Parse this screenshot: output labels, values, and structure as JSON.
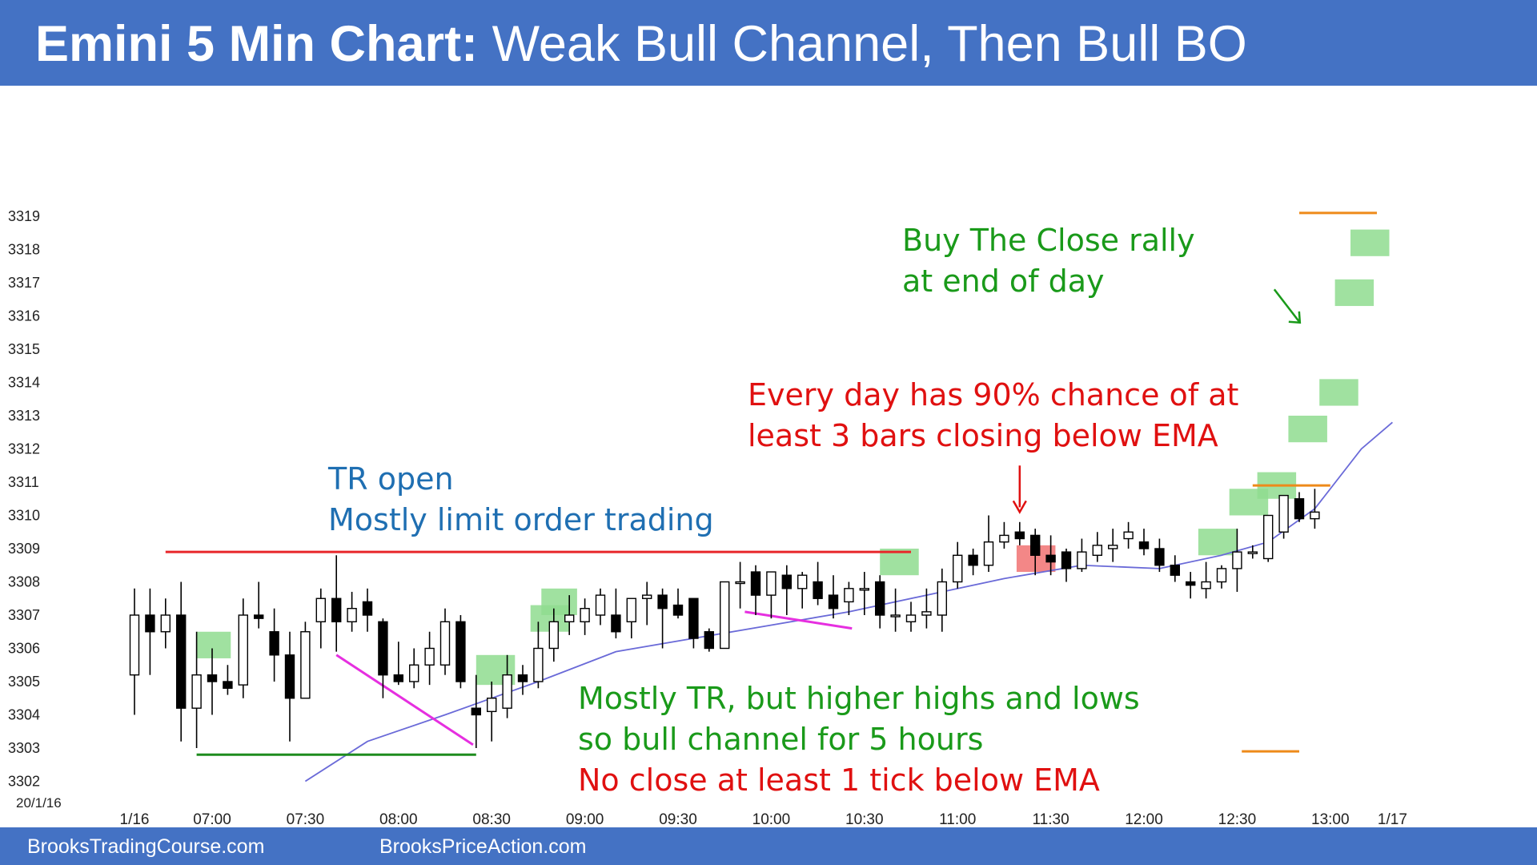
{
  "header": {
    "title_bold": "Emini 5 Min Chart:",
    "title_rest": "Weak Bull Channel, Then Bull BO"
  },
  "footer": {
    "left": "BrooksTradingCourse.com",
    "right": "BrooksPriceAction.com"
  },
  "colors": {
    "title_bar": "#4472c4",
    "ema": "#6a6ad8",
    "resistance": "#e8262a",
    "support": "#1e8c1e",
    "wedge": "#e62fe0",
    "target": "#ee8a1a",
    "buy_highlight": "#8fdc8f",
    "sell_highlight": "#f27a7a",
    "green_text": "#1a9a1a",
    "red_text": "#e01010",
    "blue_text": "#1f6fb2"
  },
  "chart_data": {
    "type": "candlestick",
    "date_label": "20/1/16",
    "y_ticks": [
      3302,
      3303,
      3304,
      3305,
      3306,
      3307,
      3308,
      3309,
      3310,
      3311,
      3312,
      3313,
      3314,
      3315,
      3316,
      3317,
      3318,
      3319
    ],
    "ylim": [
      3302,
      3319
    ],
    "x_ticks": [
      {
        "label": "1/16",
        "bar": 0
      },
      {
        "label": "07:00",
        "bar": 5
      },
      {
        "label": "07:30",
        "bar": 11
      },
      {
        "label": "08:00",
        "bar": 17
      },
      {
        "label": "08:30",
        "bar": 23
      },
      {
        "label": "09:00",
        "bar": 29
      },
      {
        "label": "09:30",
        "bar": 35
      },
      {
        "label": "10:00",
        "bar": 41
      },
      {
        "label": "10:30",
        "bar": 47
      },
      {
        "label": "11:00",
        "bar": 53
      },
      {
        "label": "11:30",
        "bar": 59
      },
      {
        "label": "12:00",
        "bar": 65
      },
      {
        "label": "12:30",
        "bar": 71
      },
      {
        "label": "13:00",
        "bar": 77
      },
      {
        "label": "1/17",
        "bar": 81
      }
    ],
    "bars": [
      {
        "o": 3305.2,
        "h": 3307.8,
        "l": 3304.0,
        "c": 3307.0
      },
      {
        "o": 3307.0,
        "h": 3307.8,
        "l": 3305.2,
        "c": 3306.5
      },
      {
        "o": 3306.5,
        "h": 3307.5,
        "l": 3306.0,
        "c": 3307.0
      },
      {
        "o": 3307.0,
        "h": 3308.0,
        "l": 3303.2,
        "c": 3304.2
      },
      {
        "o": 3304.2,
        "h": 3306.5,
        "l": 3303.0,
        "c": 3305.2
      },
      {
        "o": 3305.2,
        "h": 3306.0,
        "l": 3304.0,
        "c": 3305.0
      },
      {
        "o": 3305.0,
        "h": 3305.5,
        "l": 3304.6,
        "c": 3304.8
      },
      {
        "o": 3304.9,
        "h": 3307.5,
        "l": 3304.5,
        "c": 3307.0
      },
      {
        "o": 3307.0,
        "h": 3308.0,
        "l": 3306.6,
        "c": 3306.9
      },
      {
        "o": 3306.5,
        "h": 3307.2,
        "l": 3305.0,
        "c": 3305.8
      },
      {
        "o": 3305.8,
        "h": 3306.5,
        "l": 3303.2,
        "c": 3304.5
      },
      {
        "o": 3304.5,
        "h": 3306.8,
        "l": 3304.5,
        "c": 3306.5
      },
      {
        "o": 3306.8,
        "h": 3307.8,
        "l": 3306.0,
        "c": 3307.5
      },
      {
        "o": 3307.5,
        "h": 3308.8,
        "l": 3305.9,
        "c": 3306.8
      },
      {
        "o": 3306.8,
        "h": 3307.7,
        "l": 3306.5,
        "c": 3307.2
      },
      {
        "o": 3307.4,
        "h": 3307.8,
        "l": 3306.5,
        "c": 3307.0
      },
      {
        "o": 3306.8,
        "h": 3306.9,
        "l": 3304.5,
        "c": 3305.2
      },
      {
        "o": 3305.2,
        "h": 3306.2,
        "l": 3304.9,
        "c": 3305.0
      },
      {
        "o": 3305.0,
        "h": 3306.0,
        "l": 3304.8,
        "c": 3305.5
      },
      {
        "o": 3305.5,
        "h": 3306.5,
        "l": 3304.9,
        "c": 3306.0
      },
      {
        "o": 3305.5,
        "h": 3307.2,
        "l": 3305.2,
        "c": 3306.8
      },
      {
        "o": 3306.8,
        "h": 3307.0,
        "l": 3304.8,
        "c": 3305.0
      },
      {
        "o": 3304.2,
        "h": 3305.2,
        "l": 3303.0,
        "c": 3304.0
      },
      {
        "o": 3304.1,
        "h": 3305.0,
        "l": 3303.2,
        "c": 3304.5
      },
      {
        "o": 3304.2,
        "h": 3305.8,
        "l": 3303.9,
        "c": 3305.2
      },
      {
        "o": 3305.2,
        "h": 3305.5,
        "l": 3304.6,
        "c": 3305.0
      },
      {
        "o": 3305.0,
        "h": 3306.8,
        "l": 3304.8,
        "c": 3306.0
      },
      {
        "o": 3306.0,
        "h": 3307.2,
        "l": 3305.6,
        "c": 3306.8
      },
      {
        "o": 3306.8,
        "h": 3307.6,
        "l": 3306.4,
        "c": 3307.0
      },
      {
        "o": 3306.8,
        "h": 3307.5,
        "l": 3306.4,
        "c": 3307.2
      },
      {
        "o": 3307.0,
        "h": 3307.8,
        "l": 3306.7,
        "c": 3307.6
      },
      {
        "o": 3307.0,
        "h": 3307.8,
        "l": 3306.3,
        "c": 3306.5
      },
      {
        "o": 3306.8,
        "h": 3307.5,
        "l": 3306.3,
        "c": 3307.5
      },
      {
        "o": 3307.5,
        "h": 3308.0,
        "l": 3306.7,
        "c": 3307.6
      },
      {
        "o": 3307.6,
        "h": 3307.8,
        "l": 3306.0,
        "c": 3307.2
      },
      {
        "o": 3307.3,
        "h": 3307.8,
        "l": 3306.9,
        "c": 3307.0
      },
      {
        "o": 3307.5,
        "h": 3307.5,
        "l": 3306.0,
        "c": 3306.3
      },
      {
        "o": 3306.5,
        "h": 3306.6,
        "l": 3305.9,
        "c": 3306.0
      },
      {
        "o": 3306.0,
        "h": 3308.0,
        "l": 3306.0,
        "c": 3308.0
      },
      {
        "o": 3308.0,
        "h": 3308.6,
        "l": 3307.2,
        "c": 3308.0
      },
      {
        "o": 3308.3,
        "h": 3308.5,
        "l": 3307.0,
        "c": 3307.6
      },
      {
        "o": 3307.6,
        "h": 3308.3,
        "l": 3306.9,
        "c": 3308.3
      },
      {
        "o": 3308.2,
        "h": 3308.5,
        "l": 3307.0,
        "c": 3307.8
      },
      {
        "o": 3307.8,
        "h": 3308.3,
        "l": 3307.2,
        "c": 3308.2
      },
      {
        "o": 3308.0,
        "h": 3308.6,
        "l": 3307.3,
        "c": 3307.5
      },
      {
        "o": 3307.6,
        "h": 3308.2,
        "l": 3306.9,
        "c": 3307.2
      },
      {
        "o": 3307.4,
        "h": 3308.0,
        "l": 3307.0,
        "c": 3307.8
      },
      {
        "o": 3307.8,
        "h": 3308.3,
        "l": 3307.0,
        "c": 3307.8
      },
      {
        "o": 3308.0,
        "h": 3308.2,
        "l": 3306.6,
        "c": 3307.0
      },
      {
        "o": 3307.0,
        "h": 3307.8,
        "l": 3306.5,
        "c": 3307.0
      },
      {
        "o": 3306.8,
        "h": 3307.4,
        "l": 3306.5,
        "c": 3307.0
      },
      {
        "o": 3307.0,
        "h": 3307.8,
        "l": 3306.6,
        "c": 3307.1
      },
      {
        "o": 3307.0,
        "h": 3308.4,
        "l": 3306.5,
        "c": 3308.0
      },
      {
        "o": 3308.0,
        "h": 3309.2,
        "l": 3307.8,
        "c": 3308.8
      },
      {
        "o": 3308.8,
        "h": 3309.0,
        "l": 3308.2,
        "c": 3308.5
      },
      {
        "o": 3308.5,
        "h": 3310.0,
        "l": 3308.3,
        "c": 3309.2
      },
      {
        "o": 3309.2,
        "h": 3309.8,
        "l": 3309.0,
        "c": 3309.4
      },
      {
        "o": 3309.5,
        "h": 3309.8,
        "l": 3309.1,
        "c": 3309.3
      },
      {
        "o": 3309.4,
        "h": 3309.6,
        "l": 3308.2,
        "c": 3308.8
      },
      {
        "o": 3308.8,
        "h": 3309.4,
        "l": 3308.2,
        "c": 3308.6
      },
      {
        "o": 3308.9,
        "h": 3309.0,
        "l": 3308.0,
        "c": 3308.4
      },
      {
        "o": 3308.4,
        "h": 3309.3,
        "l": 3308.3,
        "c": 3308.9
      },
      {
        "o": 3308.8,
        "h": 3309.5,
        "l": 3308.6,
        "c": 3309.1
      },
      {
        "o": 3309.0,
        "h": 3309.6,
        "l": 3308.6,
        "c": 3309.1
      },
      {
        "o": 3309.3,
        "h": 3309.8,
        "l": 3309.0,
        "c": 3309.5
      },
      {
        "o": 3309.2,
        "h": 3309.6,
        "l": 3308.8,
        "c": 3309.0
      },
      {
        "o": 3309.0,
        "h": 3309.3,
        "l": 3308.3,
        "c": 3308.5
      },
      {
        "o": 3308.5,
        "h": 3308.8,
        "l": 3308.0,
        "c": 3308.2
      },
      {
        "o": 3308.0,
        "h": 3308.3,
        "l": 3307.5,
        "c": 3307.9
      },
      {
        "o": 3307.8,
        "h": 3308.6,
        "l": 3307.5,
        "c": 3308.0
      },
      {
        "o": 3308.0,
        "h": 3308.5,
        "l": 3307.8,
        "c": 3308.4
      },
      {
        "o": 3308.4,
        "h": 3309.6,
        "l": 3307.7,
        "c": 3308.9
      },
      {
        "o": 3308.9,
        "h": 3309.1,
        "l": 3308.7,
        "c": 3308.9
      },
      {
        "o": 3308.7,
        "h": 3310.0,
        "l": 3308.6,
        "c": 3310.0
      },
      {
        "o": 3309.5,
        "h": 3310.6,
        "l": 3309.3,
        "c": 3310.6
      },
      {
        "o": 3310.5,
        "h": 3310.7,
        "l": 3309.8,
        "c": 3309.9
      },
      {
        "o": 3309.9,
        "h": 3310.8,
        "l": 3309.6,
        "c": 3310.1
      }
    ],
    "ema": [
      {
        "bar": 11,
        "v": 3302.0
      },
      {
        "bar": 15,
        "v": 3303.2
      },
      {
        "bar": 20,
        "v": 3304.0
      },
      {
        "bar": 26,
        "v": 3305.0
      },
      {
        "bar": 31,
        "v": 3305.9
      },
      {
        "bar": 36,
        "v": 3306.3
      },
      {
        "bar": 41,
        "v": 3306.7
      },
      {
        "bar": 46,
        "v": 3307.1
      },
      {
        "bar": 51,
        "v": 3307.6
      },
      {
        "bar": 56,
        "v": 3308.1
      },
      {
        "bar": 61,
        "v": 3308.5
      },
      {
        "bar": 66,
        "v": 3308.4
      },
      {
        "bar": 70,
        "v": 3308.8
      },
      {
        "bar": 73,
        "v": 3309.2
      },
      {
        "bar": 76,
        "v": 3310.2
      },
      {
        "bar": 79,
        "v": 3312.0
      },
      {
        "bar": 81,
        "v": 3312.8
      }
    ],
    "lines": [
      {
        "kind": "resistance",
        "x1": 2,
        "x2": 50,
        "y": 3308.9
      },
      {
        "kind": "support",
        "x1": 4,
        "x2": 22,
        "y": 3302.8
      },
      {
        "kind": "wedge",
        "x1": 13,
        "y1": 3305.8,
        "x2": 21.8,
        "y2": 3303.1
      },
      {
        "kind": "wedge",
        "x1": 39.3,
        "y1": 3307.1,
        "x2": 46.2,
        "y2": 3306.6
      }
    ],
    "highlights_buy": [
      {
        "x1": 4,
        "x2": 6.2,
        "y1": 3305.7,
        "y2": 3306.5
      },
      {
        "x1": 22,
        "x2": 24.5,
        "y1": 3304.9,
        "y2": 3305.8
      },
      {
        "x1": 25.5,
        "x2": 28,
        "y1": 3306.5,
        "y2": 3307.3
      },
      {
        "x1": 26.2,
        "x2": 28.5,
        "y1": 3307.0,
        "y2": 3307.8
      },
      {
        "x1": 48,
        "x2": 50.5,
        "y1": 3308.2,
        "y2": 3309.0
      },
      {
        "x1": 68.5,
        "x2": 71,
        "y1": 3308.8,
        "y2": 3309.6
      },
      {
        "x1": 70.5,
        "x2": 73,
        "y1": 3310.0,
        "y2": 3310.8
      },
      {
        "x1": 72.3,
        "x2": 74.8,
        "y1": 3310.5,
        "y2": 3311.3
      },
      {
        "x1": 74.3,
        "x2": 76.8,
        "y1": 3312.2,
        "y2": 3313.0
      },
      {
        "x1": 76.3,
        "x2": 78.8,
        "y1": 3313.3,
        "y2": 3314.1
      },
      {
        "x1": 77.3,
        "x2": 79.8,
        "y1": 3316.3,
        "y2": 3317.1
      },
      {
        "x1": 78.3,
        "x2": 80.8,
        "y1": 3317.8,
        "y2": 3318.6
      }
    ],
    "highlights_sell": [
      {
        "x1": 56.8,
        "x2": 59.3,
        "y1": 3308.3,
        "y2": 3309.1
      }
    ],
    "targets": [
      {
        "x1": 75,
        "x2": 80,
        "y": 3319.1
      },
      {
        "x1": 72,
        "x2": 77,
        "y": 3310.9
      },
      {
        "x1": 71.3,
        "x2": 75,
        "y": 3302.9
      }
    ],
    "arrows": [
      {
        "kind": "red",
        "bar": 57,
        "y_from": 3311.5,
        "y_to": 3310.1
      },
      {
        "kind": "green",
        "bar": 73.6,
        "y_from": 3316.8,
        "y_to": 3315.8
      }
    ],
    "annotations": {
      "tr_open_1": "TR open",
      "tr_open_2": "Mostly limit order trading",
      "every_day_1": "Every day has 90% chance of at",
      "every_day_2": "least 3 bars closing below EMA",
      "btc_1": "Buy The Close rally",
      "btc_2": "at end of day",
      "mostly_tr_1": "Mostly TR, but higher highs and lows",
      "mostly_tr_2": "so bull channel for 5 hours",
      "no_close": "No close at least 1 tick below EMA"
    }
  }
}
